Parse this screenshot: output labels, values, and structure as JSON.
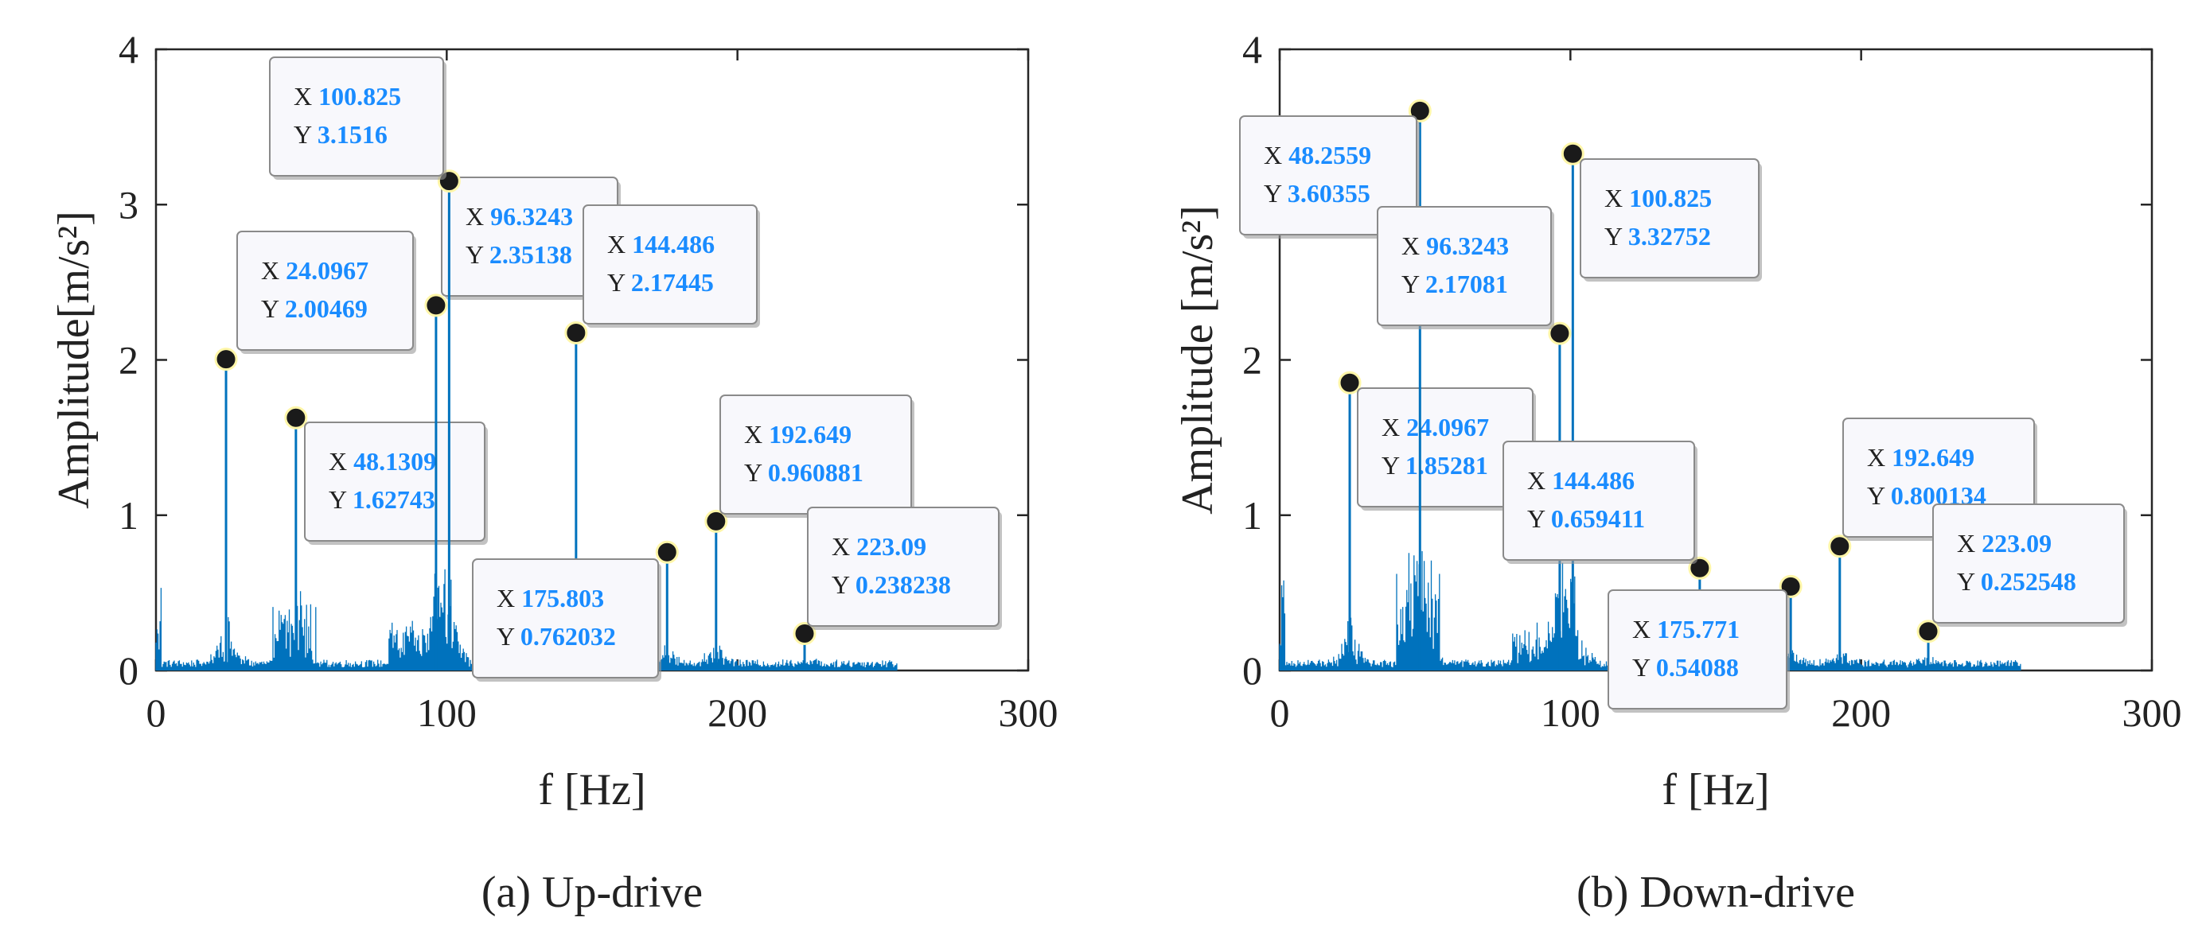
{
  "chart_data": [
    {
      "type": "line",
      "caption": "(a) Up-drive",
      "xlabel": "f [Hz]",
      "ylabel": "Amplitude[m/s²]",
      "xlim": [
        0,
        300
      ],
      "ylim": [
        0,
        4
      ],
      "xticks": [
        0,
        100,
        200,
        300
      ],
      "yticks": [
        0,
        1,
        2,
        3,
        4
      ],
      "grid": false,
      "series_color": "#0072BD",
      "peaks": [
        {
          "x": 24.0967,
          "y": 2.00469,
          "x_text": "24.0967",
          "y_text": "2.00469"
        },
        {
          "x": 48.1309,
          "y": 1.62743,
          "x_text": "48.1309",
          "y_text": "1.62743"
        },
        {
          "x": 96.3243,
          "y": 2.35138,
          "x_text": "96.3243",
          "y_text": "2.35138"
        },
        {
          "x": 100.825,
          "y": 3.1516,
          "x_text": "100.825",
          "y_text": "3.1516"
        },
        {
          "x": 144.486,
          "y": 2.17445,
          "x_text": "144.486",
          "y_text": "2.17445"
        },
        {
          "x": 175.803,
          "y": 0.762032,
          "x_text": "175.803",
          "y_text": "0.762032"
        },
        {
          "x": 192.649,
          "y": 0.960881,
          "x_text": "192.649",
          "y_text": "0.960881"
        },
        {
          "x": 223.09,
          "y": 0.238238,
          "x_text": "223.09",
          "y_text": "0.238238"
        }
      ]
    },
    {
      "type": "line",
      "caption": "(b) Down-drive",
      "xlabel": "f [Hz]",
      "ylabel": "Amplitude [m/s²]",
      "xlim": [
        0,
        300
      ],
      "ylim": [
        0,
        4
      ],
      "xticks": [
        0,
        100,
        200,
        300
      ],
      "yticks": [
        0,
        1,
        2,
        3,
        4
      ],
      "grid": false,
      "series_color": "#0072BD",
      "peaks": [
        {
          "x": 24.0967,
          "y": 1.85281,
          "x_text": "24.0967",
          "y_text": "1.85281"
        },
        {
          "x": 48.2559,
          "y": 3.60355,
          "x_text": "48.2559",
          "y_text": "3.60355"
        },
        {
          "x": 96.3243,
          "y": 2.17081,
          "x_text": "96.3243",
          "y_text": "2.17081"
        },
        {
          "x": 100.825,
          "y": 3.32752,
          "x_text": "100.825",
          "y_text": "3.32752"
        },
        {
          "x": 144.486,
          "y": 0.659411,
          "x_text": "144.486",
          "y_text": "0.659411"
        },
        {
          "x": 175.771,
          "y": 0.54088,
          "x_text": "175.771",
          "y_text": "0.54088"
        },
        {
          "x": 192.649,
          "y": 0.800134,
          "x_text": "192.649",
          "y_text": "0.800134"
        },
        {
          "x": 223.09,
          "y": 0.252548,
          "x_text": "223.09",
          "y_text": "0.252548"
        }
      ]
    }
  ]
}
